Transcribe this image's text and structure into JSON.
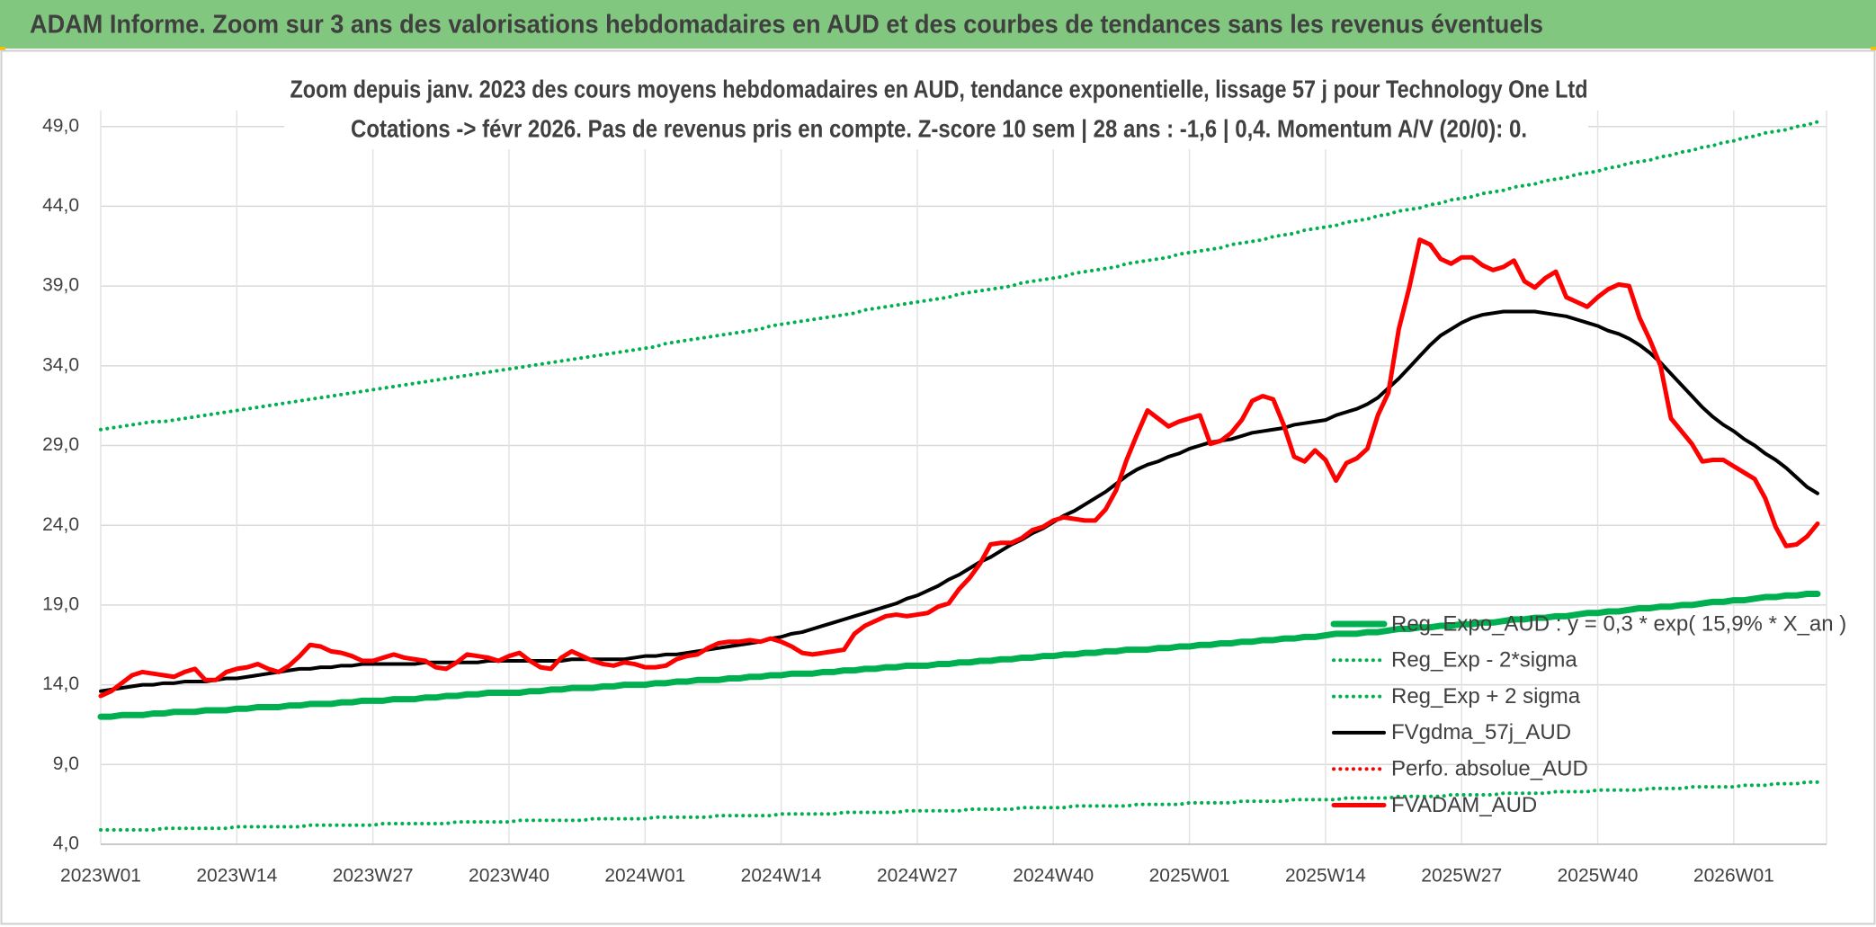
{
  "chart_data": {
    "type": "line",
    "title": "ADAM Informe. Zoom sur 3 ans des valorisations hebdomadaires en AUD et des courbes de tendances sans les revenus éventuels",
    "subtitle": [
      "Zoom depuis janv. 2023 des cours moyens hebdomadaires en AUD, tendance exponentielle, lissage 57 j pour Technology One Ltd",
      "Cotations -> févr 2026. Pas de revenus pris en compte. Z-score 10 sem | 28 ans : -1,6 | 0,4. Momentum A/V (20/0): 0."
    ],
    "categories": [
      "2023W01",
      null,
      null,
      null,
      null,
      null,
      null,
      null,
      null,
      null,
      null,
      null,
      null,
      "2023W14",
      null,
      null,
      null,
      null,
      null,
      null,
      null,
      null,
      null,
      null,
      null,
      null,
      "2023W27",
      null,
      null,
      null,
      null,
      null,
      null,
      null,
      null,
      null,
      null,
      null,
      null,
      "2023W40",
      null,
      null,
      null,
      null,
      null,
      null,
      null,
      null,
      null,
      null,
      null,
      null,
      "2024W01",
      null,
      null,
      null,
      null,
      null,
      null,
      null,
      null,
      null,
      null,
      null,
      null,
      "2024W14",
      null,
      null,
      null,
      null,
      null,
      null,
      null,
      null,
      null,
      null,
      null,
      null,
      "2024W27",
      null,
      null,
      null,
      null,
      null,
      null,
      null,
      null,
      null,
      null,
      null,
      null,
      "2024W40",
      null,
      null,
      null,
      null,
      null,
      null,
      null,
      null,
      null,
      null,
      null,
      null,
      "2025W01",
      null,
      null,
      null,
      null,
      null,
      null,
      null,
      null,
      null,
      null,
      null,
      null,
      "2025W14",
      null,
      null,
      null,
      null,
      null,
      null,
      null,
      null,
      null,
      null,
      null,
      null,
      "2025W27",
      null,
      null,
      null,
      null,
      null,
      null,
      null,
      null,
      null,
      null,
      null,
      null,
      "2025W40",
      null,
      null,
      null,
      null,
      null,
      null,
      null,
      null,
      null,
      null,
      null,
      null,
      "2026W01",
      null,
      null,
      null,
      null,
      null,
      null,
      null,
      null
    ],
    "ylim": [
      4,
      50
    ],
    "yticks": [
      {
        "value": 4,
        "label": "4,0"
      },
      {
        "value": 9,
        "label": "9,0"
      },
      {
        "value": 14,
        "label": "14,0"
      },
      {
        "value": 19,
        "label": "19,0"
      },
      {
        "value": 24,
        "label": "24,0"
      },
      {
        "value": 29,
        "label": "29,0"
      },
      {
        "value": 34,
        "label": "34,0"
      },
      {
        "value": 39,
        "label": "39,0"
      },
      {
        "value": 44,
        "label": "44,0"
      },
      {
        "value": 49,
        "label": "49,0"
      }
    ],
    "grid": true,
    "legend": "lower right",
    "series": [
      {
        "name": "Reg_Expo_AUD : y = 0,3 * exp( 15,9% * X_an )",
        "color": "#00b050",
        "style": "solid",
        "width": 7,
        "values": [
          12.0,
          12.0,
          12.1,
          12.1,
          12.1,
          12.2,
          12.2,
          12.3,
          12.3,
          12.3,
          12.4,
          12.4,
          12.4,
          12.5,
          12.5,
          12.6,
          12.6,
          12.6,
          12.7,
          12.7,
          12.8,
          12.8,
          12.8,
          12.9,
          12.9,
          13.0,
          13.0,
          13.0,
          13.1,
          13.1,
          13.1,
          13.2,
          13.2,
          13.3,
          13.3,
          13.4,
          13.4,
          13.5,
          13.5,
          13.5,
          13.5,
          13.6,
          13.6,
          13.7,
          13.7,
          13.8,
          13.8,
          13.8,
          13.9,
          13.9,
          14.0,
          14.0,
          14.0,
          14.1,
          14.1,
          14.2,
          14.2,
          14.3,
          14.3,
          14.3,
          14.4,
          14.4,
          14.5,
          14.5,
          14.6,
          14.6,
          14.7,
          14.7,
          14.7,
          14.8,
          14.8,
          14.9,
          14.9,
          15.0,
          15.0,
          15.1,
          15.1,
          15.2,
          15.2,
          15.2,
          15.3,
          15.3,
          15.4,
          15.4,
          15.5,
          15.5,
          15.6,
          15.6,
          15.7,
          15.7,
          15.8,
          15.8,
          15.9,
          15.9,
          16.0,
          16.0,
          16.1,
          16.1,
          16.2,
          16.2,
          16.2,
          16.3,
          16.3,
          16.4,
          16.4,
          16.5,
          16.5,
          16.6,
          16.6,
          16.7,
          16.7,
          16.8,
          16.8,
          16.9,
          16.9,
          17.0,
          17.0,
          17.1,
          17.2,
          17.2,
          17.2,
          17.3,
          17.3,
          17.4,
          17.5,
          17.5,
          17.6,
          17.6,
          17.7,
          17.7,
          17.8,
          17.8,
          17.9,
          17.9,
          18.0,
          18.1,
          18.1,
          18.2,
          18.2,
          18.3,
          18.3,
          18.4,
          18.5,
          18.5,
          18.6,
          18.6,
          18.7,
          18.8,
          18.8,
          18.9,
          18.9,
          19.0,
          19.0,
          19.1,
          19.2,
          19.2,
          19.3,
          19.3,
          19.4,
          19.5,
          19.5,
          19.6,
          19.6,
          19.7,
          19.7
        ]
      },
      {
        "name": "Reg_Exp - 2*sigma",
        "color": "#00b050",
        "style": "dotted",
        "width": 4,
        "values": [
          4.9,
          4.9,
          4.9,
          4.9,
          4.9,
          4.9,
          5.0,
          5.0,
          5.0,
          5.0,
          5.0,
          5.0,
          5.0,
          5.1,
          5.1,
          5.1,
          5.1,
          5.1,
          5.1,
          5.1,
          5.2,
          5.2,
          5.2,
          5.2,
          5.2,
          5.2,
          5.2,
          5.3,
          5.3,
          5.3,
          5.3,
          5.3,
          5.3,
          5.3,
          5.4,
          5.4,
          5.4,
          5.4,
          5.4,
          5.4,
          5.5,
          5.5,
          5.5,
          5.5,
          5.5,
          5.5,
          5.5,
          5.6,
          5.6,
          5.6,
          5.6,
          5.6,
          5.6,
          5.7,
          5.7,
          5.7,
          5.7,
          5.7,
          5.7,
          5.8,
          5.8,
          5.8,
          5.8,
          5.8,
          5.8,
          5.9,
          5.9,
          5.9,
          5.9,
          5.9,
          5.9,
          6.0,
          6.0,
          6.0,
          6.0,
          6.0,
          6.0,
          6.1,
          6.1,
          6.1,
          6.1,
          6.1,
          6.1,
          6.2,
          6.2,
          6.2,
          6.2,
          6.2,
          6.3,
          6.3,
          6.3,
          6.3,
          6.3,
          6.4,
          6.4,
          6.4,
          6.4,
          6.4,
          6.4,
          6.5,
          6.5,
          6.5,
          6.5,
          6.5,
          6.6,
          6.6,
          6.6,
          6.6,
          6.6,
          6.7,
          6.7,
          6.7,
          6.7,
          6.7,
          6.8,
          6.8,
          6.8,
          6.8,
          6.8,
          6.9,
          6.9,
          6.9,
          6.9,
          6.9,
          7.0,
          7.0,
          7.0,
          7.0,
          7.0,
          7.1,
          7.1,
          7.1,
          7.1,
          7.1,
          7.2,
          7.2,
          7.2,
          7.2,
          7.2,
          7.3,
          7.3,
          7.3,
          7.3,
          7.4,
          7.4,
          7.4,
          7.4,
          7.4,
          7.5,
          7.5,
          7.5,
          7.5,
          7.6,
          7.6,
          7.6,
          7.6,
          7.6,
          7.7,
          7.7,
          7.7,
          7.8,
          7.8,
          7.8,
          7.9,
          7.9
        ]
      },
      {
        "name": "Reg_Exp + 2 sigma",
        "color": "#00b050",
        "style": "dotted",
        "width": 4,
        "values": [
          30.0,
          30.1,
          30.2,
          30.3,
          30.4,
          30.5,
          30.5,
          30.6,
          30.7,
          30.8,
          30.9,
          31.0,
          31.1,
          31.2,
          31.3,
          31.4,
          31.5,
          31.6,
          31.7,
          31.8,
          31.9,
          32.0,
          32.1,
          32.2,
          32.3,
          32.4,
          32.5,
          32.6,
          32.7,
          32.8,
          32.9,
          33.0,
          33.1,
          33.2,
          33.3,
          33.4,
          33.5,
          33.6,
          33.7,
          33.8,
          33.9,
          34.0,
          34.1,
          34.2,
          34.3,
          34.4,
          34.5,
          34.6,
          34.7,
          34.8,
          34.9,
          35.0,
          35.1,
          35.2,
          35.4,
          35.5,
          35.6,
          35.7,
          35.8,
          35.9,
          36.0,
          36.1,
          36.2,
          36.3,
          36.5,
          36.6,
          36.7,
          36.8,
          36.9,
          37.0,
          37.1,
          37.2,
          37.3,
          37.5,
          37.6,
          37.7,
          37.8,
          37.9,
          38.0,
          38.1,
          38.2,
          38.3,
          38.5,
          38.6,
          38.7,
          38.8,
          38.9,
          39.0,
          39.2,
          39.3,
          39.4,
          39.5,
          39.6,
          39.8,
          39.9,
          40.0,
          40.1,
          40.2,
          40.4,
          40.5,
          40.6,
          40.7,
          40.8,
          41.0,
          41.1,
          41.2,
          41.3,
          41.4,
          41.6,
          41.7,
          41.8,
          41.9,
          42.1,
          42.2,
          42.3,
          42.5,
          42.6,
          42.7,
          42.8,
          43.0,
          43.1,
          43.2,
          43.4,
          43.5,
          43.7,
          43.8,
          43.9,
          44.1,
          44.2,
          44.4,
          44.5,
          44.6,
          44.8,
          44.9,
          45.0,
          45.2,
          45.3,
          45.4,
          45.6,
          45.7,
          45.8,
          46.0,
          46.1,
          46.2,
          46.4,
          46.5,
          46.7,
          46.8,
          46.9,
          47.1,
          47.2,
          47.4,
          47.5,
          47.7,
          47.8,
          48.0,
          48.1,
          48.3,
          48.4,
          48.6,
          48.7,
          48.8,
          49.0,
          49.1,
          49.3
        ]
      },
      {
        "name": "FVgdma_57j_AUD",
        "color": "#000000",
        "style": "solid",
        "width": 4,
        "values": [
          13.6,
          13.7,
          13.8,
          13.9,
          14.0,
          14.0,
          14.1,
          14.1,
          14.2,
          14.2,
          14.2,
          14.3,
          14.4,
          14.4,
          14.5,
          14.6,
          14.7,
          14.8,
          14.9,
          15.0,
          15.0,
          15.1,
          15.1,
          15.2,
          15.2,
          15.3,
          15.3,
          15.3,
          15.3,
          15.3,
          15.3,
          15.4,
          15.4,
          15.4,
          15.4,
          15.4,
          15.4,
          15.5,
          15.5,
          15.5,
          15.5,
          15.5,
          15.5,
          15.5,
          15.5,
          15.6,
          15.6,
          15.6,
          15.6,
          15.6,
          15.6,
          15.7,
          15.8,
          15.8,
          15.9,
          15.9,
          16.0,
          16.1,
          16.2,
          16.3,
          16.4,
          16.5,
          16.6,
          16.7,
          16.9,
          17.0,
          17.2,
          17.3,
          17.5,
          17.7,
          17.9,
          18.1,
          18.3,
          18.5,
          18.7,
          18.9,
          19.1,
          19.4,
          19.6,
          19.9,
          20.2,
          20.6,
          20.9,
          21.3,
          21.7,
          22.0,
          22.4,
          22.8,
          23.1,
          23.5,
          23.8,
          24.2,
          24.6,
          24.9,
          25.3,
          25.7,
          26.1,
          26.6,
          27.1,
          27.5,
          27.8,
          28.0,
          28.3,
          28.5,
          28.8,
          29.0,
          29.2,
          29.3,
          29.4,
          29.6,
          29.8,
          29.9,
          30.0,
          30.1,
          30.3,
          30.4,
          30.5,
          30.6,
          30.9,
          31.1,
          31.3,
          31.6,
          32.0,
          32.6,
          33.2,
          33.9,
          34.6,
          35.3,
          35.9,
          36.3,
          36.7,
          37.0,
          37.2,
          37.3,
          37.4,
          37.4,
          37.4,
          37.4,
          37.3,
          37.2,
          37.1,
          36.9,
          36.7,
          36.5,
          36.2,
          36.0,
          35.7,
          35.3,
          34.8,
          34.2,
          33.5,
          32.8,
          32.1,
          31.4,
          30.8,
          30.3,
          29.9,
          29.4,
          29.0,
          28.5,
          28.1,
          27.6,
          27.0,
          26.4,
          26.0
        ]
      },
      {
        "name": "Perfo. absolue_AUD",
        "color": "#ff0000",
        "style": "dotted",
        "width": 4
      },
      {
        "name": "FVADAM_AUD",
        "color": "#ff0000",
        "style": "solid",
        "width": 5,
        "values": [
          13.3,
          13.6,
          14.1,
          14.6,
          14.8,
          14.7,
          14.6,
          14.5,
          14.8,
          15.0,
          14.3,
          14.3,
          14.8,
          15.0,
          15.1,
          15.3,
          15.0,
          14.8,
          15.2,
          15.8,
          16.5,
          16.4,
          16.1,
          16.0,
          15.8,
          15.5,
          15.5,
          15.7,
          15.9,
          15.7,
          15.6,
          15.5,
          15.1,
          15.0,
          15.4,
          15.9,
          15.8,
          15.7,
          15.5,
          15.8,
          16.0,
          15.5,
          15.1,
          15.0,
          15.7,
          16.1,
          15.8,
          15.5,
          15.3,
          15.2,
          15.4,
          15.3,
          15.1,
          15.1,
          15.2,
          15.6,
          15.8,
          15.9,
          16.3,
          16.6,
          16.7,
          16.7,
          16.8,
          16.7,
          16.9,
          16.7,
          16.4,
          16.0,
          15.9,
          16.0,
          16.1,
          16.2,
          17.2,
          17.7,
          18.0,
          18.3,
          18.4,
          18.3,
          18.4,
          18.5,
          18.9,
          19.1,
          20.0,
          20.7,
          21.6,
          22.8,
          22.9,
          22.9,
          23.2,
          23.7,
          23.9,
          24.3,
          24.5,
          24.4,
          24.3,
          24.3,
          25.0,
          26.2,
          28.1,
          29.7,
          31.2,
          30.7,
          30.2,
          30.5,
          30.7,
          30.9,
          29.1,
          29.3,
          29.8,
          30.6,
          31.8,
          32.1,
          31.9,
          30.3,
          28.3,
          28.0,
          28.7,
          28.1,
          26.8,
          27.9,
          28.2,
          28.8,
          30.9,
          32.3,
          36.3,
          38.9,
          41.9,
          41.6,
          40.7,
          40.4,
          40.8,
          40.8,
          40.3,
          40.0,
          40.2,
          40.6,
          39.3,
          38.9,
          39.5,
          39.9,
          38.3,
          38.0,
          37.7,
          38.3,
          38.8,
          39.1,
          39.0,
          37.0,
          35.6,
          34.0,
          30.7,
          29.9,
          29.1,
          28.0,
          28.1,
          28.1,
          27.7,
          27.3,
          26.9,
          25.7,
          23.9,
          22.7,
          22.8,
          23.3,
          24.1
        ]
      }
    ]
  }
}
